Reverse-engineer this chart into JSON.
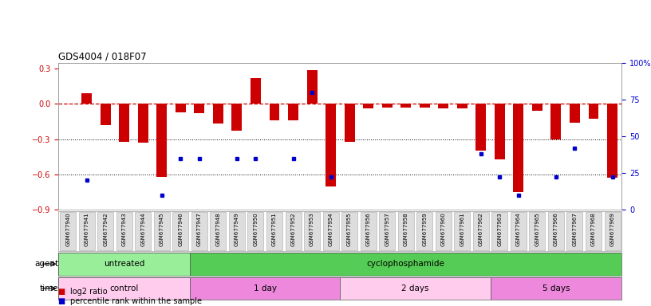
{
  "title": "GDS4004 / 018F07",
  "samples": [
    "GSM677940",
    "GSM677941",
    "GSM677942",
    "GSM677943",
    "GSM677944",
    "GSM677945",
    "GSM677946",
    "GSM677947",
    "GSM677948",
    "GSM677949",
    "GSM677950",
    "GSM677951",
    "GSM677952",
    "GSM677953",
    "GSM677954",
    "GSM677955",
    "GSM677956",
    "GSM677957",
    "GSM677958",
    "GSM677959",
    "GSM677960",
    "GSM677961",
    "GSM677962",
    "GSM677963",
    "GSM677964",
    "GSM677965",
    "GSM677966",
    "GSM677967",
    "GSM677968",
    "GSM677969"
  ],
  "log2_ratio": [
    0.0,
    0.09,
    -0.18,
    -0.32,
    -0.33,
    -0.62,
    -0.07,
    -0.08,
    -0.17,
    -0.23,
    0.22,
    -0.14,
    -0.14,
    0.29,
    -0.7,
    -0.32,
    -0.04,
    -0.03,
    -0.03,
    -0.03,
    -0.04,
    -0.04,
    -0.4,
    -0.47,
    -0.75,
    -0.06,
    -0.3,
    -0.16,
    -0.13,
    -0.63
  ],
  "percentile": [
    null,
    20,
    null,
    null,
    null,
    10,
    35,
    35,
    null,
    35,
    35,
    null,
    35,
    80,
    22,
    null,
    null,
    null,
    null,
    null,
    null,
    null,
    38,
    22,
    10,
    null,
    22,
    42,
    null,
    22
  ],
  "ylim_left": [
    -0.9,
    0.35
  ],
  "yticks_left": [
    0.3,
    0.0,
    -0.3,
    -0.6,
    -0.9
  ],
  "ylim_right": [
    0,
    100
  ],
  "yticks_right": [
    100,
    75,
    50,
    25,
    0
  ],
  "bar_color": "#cc0000",
  "dot_color": "#0000cc",
  "hline_color": "#cc0000",
  "dotline1": -0.3,
  "dotline2": -0.6,
  "agent_groups": [
    {
      "label": "untreated",
      "start": 0,
      "end": 7,
      "color": "#99ee99"
    },
    {
      "label": "cyclophosphamide",
      "start": 7,
      "end": 30,
      "color": "#55cc55"
    }
  ],
  "time_groups": [
    {
      "label": "control",
      "start": 0,
      "end": 7,
      "color": "#ffccee"
    },
    {
      "label": "1 day",
      "start": 7,
      "end": 15,
      "color": "#ee88dd"
    },
    {
      "label": "2 days",
      "start": 15,
      "end": 23,
      "color": "#ffccee"
    },
    {
      "label": "5 days",
      "start": 23,
      "end": 30,
      "color": "#ee88dd"
    }
  ],
  "legend_red_label": "log2 ratio",
  "legend_blue_label": "percentile rank within the sample",
  "bar_color_legend": "#cc0000",
  "dot_color_legend": "#0000cc",
  "bg_color": "#ffffff",
  "tick_bg_color": "#dddddd",
  "tick_border_color": "#aaaaaa"
}
